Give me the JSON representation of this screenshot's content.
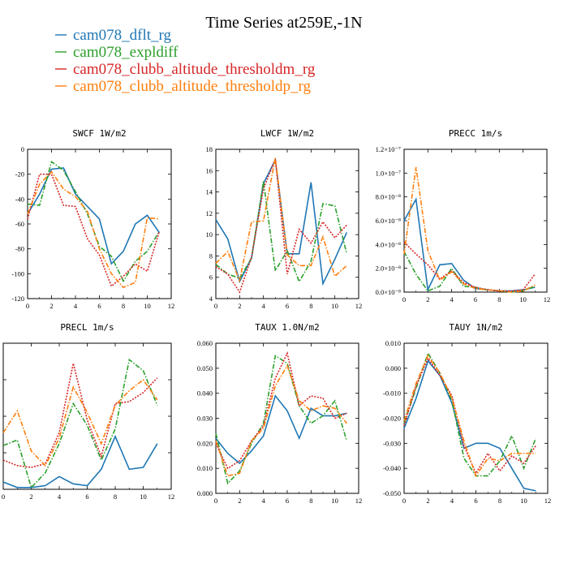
{
  "chart_data": {
    "type": "line",
    "title": "Time Series at259E,-1N",
    "legend": [
      {
        "name": "cam078_dflt_rg",
        "color": "#1f77b4",
        "dash": "solid"
      },
      {
        "name": "cam078_expldiff",
        "color": "#2ca02c",
        "dash": "dashdot"
      },
      {
        "name": "cam078_clubb_altitude_thresholdm_rg",
        "color": "#d62728",
        "dash": "dotted"
      },
      {
        "name": "cam078_clubb_altitude_thresholdp_rg",
        "color": "#ff7f0e",
        "dash": "dashdot"
      }
    ],
    "x": [
      0,
      1,
      2,
      3,
      4,
      5,
      6,
      7,
      8,
      9,
      10,
      11
    ],
    "panels": [
      {
        "title": "SWCF   1W/m2",
        "xlim": [
          0,
          12
        ],
        "ylim": [
          -120,
          0
        ],
        "xticks": [
          0,
          2,
          4,
          6,
          8,
          10,
          12
        ],
        "yticks": [
          -120,
          -100,
          -80,
          -60,
          -40,
          -20,
          0
        ],
        "ytick_labels": [
          "-120",
          "-100",
          "-80",
          "-60",
          "-40",
          "-20",
          "0"
        ],
        "series": [
          {
            "name": "cam078_dflt_rg",
            "values": [
              -52,
              -36,
              -16,
              -15,
              -36,
              -46,
              -56,
              -92,
              -82,
              -60,
              -53,
              -67
            ]
          },
          {
            "name": "cam078_expldiff",
            "values": [
              -44,
              -45,
              -10,
              -17,
              -34,
              -52,
              -78,
              -86,
              -106,
              -90,
              -82,
              -66
            ]
          },
          {
            "name": "cam078_clubb_altitude_thresholdm_rg",
            "values": [
              -56,
              -20,
              -20,
              -45,
              -46,
              -72,
              -85,
              -110,
              -102,
              -92,
              -98,
              -66
            ]
          },
          {
            "name": "cam078_clubb_altitude_thresholdp_rg",
            "values": [
              -52,
              -28,
              -18,
              -32,
              -38,
              -50,
              -80,
              -100,
              -111,
              -107,
              -55,
              -56
            ]
          }
        ]
      },
      {
        "title": "LWCF   1W/m2",
        "xlim": [
          0,
          12
        ],
        "ylim": [
          4,
          18
        ],
        "xticks": [
          0,
          2,
          4,
          6,
          8,
          10,
          12
        ],
        "yticks": [
          4,
          6,
          8,
          10,
          12,
          14,
          16,
          18
        ],
        "ytick_labels": [
          "4",
          "6",
          "8",
          "10",
          "12",
          "14",
          "16",
          "18"
        ],
        "series": [
          {
            "name": "cam078_dflt_rg",
            "values": [
              11.4,
              9.6,
              5.6,
              7.8,
              14.8,
              17.0,
              8.2,
              8.2,
              14.9,
              5.4,
              7.7,
              10.2
            ]
          },
          {
            "name": "cam078_expldiff",
            "values": [
              7.2,
              6.3,
              5.9,
              7.8,
              15.0,
              6.6,
              8.5,
              5.6,
              7.5,
              12.9,
              12.7,
              8.2
            ]
          },
          {
            "name": "cam078_clubb_altitude_thresholdm_rg",
            "values": [
              7.0,
              6.3,
              4.6,
              7.9,
              14.3,
              17.1,
              6.3,
              10.5,
              9.2,
              11.2,
              9.7,
              10.9
            ]
          },
          {
            "name": "cam078_clubb_altitude_thresholdp_rg",
            "values": [
              7.3,
              8.4,
              5.7,
              11.2,
              11.3,
              17.2,
              8.1,
              7.1,
              7.1,
              9.8,
              6.1,
              7.1
            ]
          }
        ]
      },
      {
        "title": "PRECC   1m/s",
        "xlim": [
          0,
          12
        ],
        "ylim": [
          0,
          1.2e-07
        ],
        "xticks": [
          0,
          2,
          4,
          6,
          8,
          10,
          12
        ],
        "yticks": [
          0,
          2e-08,
          4e-08,
          6e-08,
          8e-08,
          1e-07,
          1.2e-07
        ],
        "ytick_labels": [
          "0.0×10⁻⁸",
          "2.0×10⁻⁸",
          "4.0×10⁻⁸",
          "6.0×10⁻⁸",
          "8.0×10⁻⁸",
          "1.0×10⁻⁷",
          "1.2×10⁻⁷"
        ],
        "series": [
          {
            "name": "cam078_dflt_rg",
            "values": [
              6e-08,
              7.8e-08,
              2e-09,
              2.3e-08,
              2.4e-08,
              1e-08,
              3e-09,
              2e-09,
              1e-09,
              1e-09,
              2e-09,
              4e-09
            ]
          },
          {
            "name": "cam078_expldiff",
            "values": [
              3.4e-08,
              1.5e-08,
              1e-09,
              5e-09,
              2e-08,
              5e-09,
              4e-09,
              2e-09,
              1e-09,
              0.0,
              1e-09,
              5e-09
            ]
          },
          {
            "name": "cam078_clubb_altitude_thresholdm_rg",
            "values": [
              4.2e-08,
              3.2e-08,
              2.3e-08,
              1.1e-08,
              1.8e-08,
              8e-09,
              4e-09,
              2e-09,
              1e-09,
              1e-09,
              2e-09,
              1.5e-08
            ]
          },
          {
            "name": "cam078_clubb_altitude_thresholdp_rg",
            "values": [
              3.2e-08,
              1.05e-07,
              3.5e-08,
              1e-08,
              1.7e-08,
              7e-09,
              3e-09,
              2e-09,
              1e-09,
              0.0,
              1e-09,
              6e-09
            ]
          }
        ]
      },
      {
        "title": "PRECL   1m/s",
        "xlim": [
          0,
          12
        ],
        "ylim": [
          0,
          8e-09
        ],
        "xticks": [
          0,
          2,
          4,
          6,
          8,
          10,
          12
        ],
        "yticks": [
          0,
          2e-09,
          4e-09,
          6e-09,
          8e-09
        ],
        "ytick_labels": [
          "0.0×10⁻⁹",
          "2.0×10⁻⁹",
          "4.0×10⁻⁹",
          "6.0×10⁻⁹",
          "8.0×10⁻⁹"
        ],
        "series": [
          {
            "name": "cam078_dflt_rg",
            "values": [
              4e-10,
              1e-10,
              1e-10,
              2e-10,
              7e-10,
              3e-10,
              2e-10,
              1.1e-09,
              2.9e-09,
              1.1e-09,
              1.2e-09,
              2.5e-09
            ]
          },
          {
            "name": "cam078_expldiff",
            "values": [
              2.4e-09,
              2.7e-09,
              1e-10,
              9e-10,
              2.5e-09,
              4.7e-09,
              3.5e-09,
              1.6e-09,
              3.3e-09,
              7.1e-09,
              6.5e-09,
              4.6e-09
            ]
          },
          {
            "name": "cam078_clubb_altitude_thresholdm_rg",
            "values": [
              1.6e-09,
              1.3e-09,
              1.2e-09,
              1.4e-09,
              3.1e-09,
              6.9e-09,
              3.8e-09,
              1.8e-09,
              4.7e-09,
              4.8e-09,
              5.3e-09,
              6.1e-09
            ]
          },
          {
            "name": "cam078_clubb_altitude_thresholdp_rg",
            "values": [
              3.1e-09,
              4.3e-09,
              2.1e-09,
              1.3e-09,
              2.8e-09,
              5.6e-09,
              4.2e-09,
              2.5e-09,
              4.6e-09,
              5.4e-09,
              6e-09,
              4.9e-09
            ]
          }
        ]
      },
      {
        "title": "TAUX   1.0N/m2",
        "xlim": [
          0,
          12
        ],
        "ylim": [
          0,
          0.06
        ],
        "xticks": [
          0,
          2,
          4,
          6,
          8,
          10,
          12
        ],
        "yticks": [
          0,
          0.01,
          0.02,
          0.03,
          0.04,
          0.05,
          0.06
        ],
        "ytick_labels": [
          "0.000",
          "0.010",
          "0.020",
          "0.030",
          "0.040",
          "0.050",
          "0.060"
        ],
        "series": [
          {
            "name": "cam078_dflt_rg",
            "values": [
              0.022,
              0.016,
              0.012,
              0.017,
              0.023,
              0.039,
              0.033,
              0.022,
              0.034,
              0.031,
              0.031,
              0.032
            ]
          },
          {
            "name": "cam078_expldiff",
            "values": [
              0.024,
              0.004,
              0.009,
              0.02,
              0.028,
              0.055,
              0.052,
              0.035,
              0.028,
              0.031,
              0.037,
              0.021
            ]
          },
          {
            "name": "cam078_clubb_altitude_thresholdm_rg",
            "values": [
              0.02,
              0.01,
              0.013,
              0.021,
              0.027,
              0.046,
              0.056,
              0.035,
              0.039,
              0.038,
              0.03,
              0.032
            ]
          },
          {
            "name": "cam078_clubb_altitude_thresholdp_rg",
            "values": [
              0.021,
              0.007,
              0.008,
              0.021,
              0.026,
              0.043,
              0.051,
              0.037,
              0.033,
              0.035,
              0.034,
              0.028
            ]
          }
        ]
      },
      {
        "title": "TAUY   1N/m2",
        "xlim": [
          0,
          12
        ],
        "ylim": [
          -0.05,
          0.01
        ],
        "xticks": [
          0,
          2,
          4,
          6,
          8,
          10,
          12
        ],
        "yticks": [
          -0.05,
          -0.04,
          -0.03,
          -0.02,
          -0.01,
          0.0,
          0.01
        ],
        "ytick_labels": [
          "-0.050",
          "-0.040",
          "-0.030",
          "-0.020",
          "-0.010",
          "0.000",
          "0.010"
        ],
        "series": [
          {
            "name": "cam078_dflt_rg",
            "values": [
              -0.024,
              -0.012,
              0.003,
              -0.003,
              -0.014,
              -0.032,
              -0.03,
              -0.03,
              -0.032,
              -0.04,
              -0.048,
              -0.049
            ]
          },
          {
            "name": "cam078_expldiff",
            "values": [
              -0.022,
              -0.008,
              0.006,
              -0.002,
              -0.013,
              -0.036,
              -0.043,
              -0.043,
              -0.037,
              -0.027,
              -0.04,
              -0.028
            ]
          },
          {
            "name": "cam078_clubb_altitude_thresholdm_rg",
            "values": [
              -0.023,
              -0.007,
              0.004,
              -0.003,
              -0.011,
              -0.031,
              -0.042,
              -0.034,
              -0.041,
              -0.035,
              -0.038,
              -0.031
            ]
          },
          {
            "name": "cam078_clubb_altitude_thresholdp_rg",
            "values": [
              -0.021,
              -0.006,
              0.005,
              -0.002,
              -0.012,
              -0.029,
              -0.043,
              -0.036,
              -0.037,
              -0.034,
              -0.034,
              -0.034
            ]
          }
        ]
      }
    ]
  }
}
